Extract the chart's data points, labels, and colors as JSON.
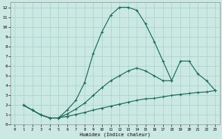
{
  "xlabel": "Humidex (Indice chaleur)",
  "background_color": "#cbe8e3",
  "grid_color": "#a8d4ce",
  "line_color": "#1a6b5a",
  "xlim": [
    -0.5,
    23.5
  ],
  "ylim": [
    0,
    12.5
  ],
  "xticks": [
    0,
    1,
    2,
    3,
    4,
    5,
    6,
    7,
    8,
    9,
    10,
    11,
    12,
    13,
    14,
    15,
    16,
    17,
    18,
    19,
    20,
    21,
    22,
    23
  ],
  "yticks": [
    0,
    1,
    2,
    3,
    4,
    5,
    6,
    7,
    8,
    9,
    10,
    11,
    12
  ],
  "line1_x": [
    1,
    2,
    3,
    4,
    5,
    6,
    7,
    8,
    9,
    10,
    11,
    12,
    13,
    14,
    15,
    16,
    17,
    18
  ],
  "line1_y": [
    2.0,
    1.5,
    1.0,
    0.7,
    0.7,
    1.5,
    2.5,
    4.3,
    7.3,
    9.5,
    11.2,
    12.0,
    12.0,
    11.7,
    10.3,
    8.5,
    6.5,
    4.5
  ],
  "line2_x": [
    1,
    2,
    3,
    4,
    5,
    6,
    7,
    8,
    9,
    10,
    11,
    12,
    13,
    14,
    15,
    16,
    17,
    18,
    19,
    20,
    21,
    22,
    23
  ],
  "line2_y": [
    2.0,
    1.5,
    1.0,
    0.7,
    0.7,
    1.1,
    1.6,
    2.2,
    3.0,
    3.8,
    4.5,
    5.0,
    5.5,
    5.8,
    5.5,
    5.0,
    4.5,
    4.5,
    6.5,
    6.5,
    5.2,
    4.5,
    3.5
  ],
  "line3_x": [
    1,
    2,
    3,
    4,
    5,
    6,
    7,
    8,
    9,
    10,
    11,
    12,
    13,
    14,
    15,
    16,
    17,
    18,
    19,
    20,
    21,
    22,
    23
  ],
  "line3_y": [
    2.0,
    1.5,
    1.0,
    0.7,
    0.7,
    0.85,
    1.05,
    1.25,
    1.5,
    1.7,
    1.9,
    2.1,
    2.3,
    2.5,
    2.65,
    2.7,
    2.85,
    3.0,
    3.1,
    3.2,
    3.3,
    3.35,
    3.5
  ]
}
